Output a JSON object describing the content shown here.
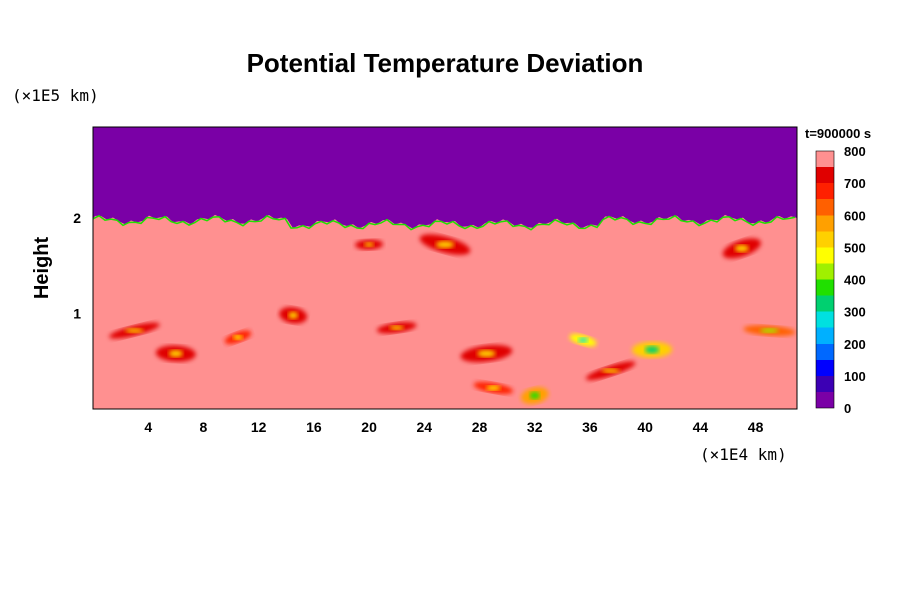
{
  "chart_data": {
    "type": "heatmap",
    "title": "Potential Temperature Deviation",
    "xlabel": "",
    "ylabel": "Height",
    "x_unit": "(×1E4 km)",
    "y_unit": "(×1E5 km)",
    "time_label": "t=900000 s",
    "xlim": [
      0,
      51
    ],
    "ylim": [
      0,
      2.95
    ],
    "x_ticks": [
      4,
      8,
      12,
      16,
      20,
      24,
      28,
      32,
      36,
      40,
      44,
      48
    ],
    "y_ticks": [
      1,
      2
    ],
    "colorbar": {
      "min": 0,
      "max": 800,
      "ticks": [
        0,
        100,
        200,
        300,
        400,
        500,
        600,
        700,
        800
      ],
      "colors": [
        "#7a00a6",
        "#3c00b4",
        "#0000ff",
        "#0068ff",
        "#00b0ff",
        "#00e0e0",
        "#00d070",
        "#20e000",
        "#a0f000",
        "#ffff00",
        "#ffd000",
        "#ffa000",
        "#ff6000",
        "#ff2000",
        "#e00000",
        "#ff9090"
      ]
    },
    "background_value": 780,
    "upper_layer": {
      "value": 0,
      "y_from": 1.98,
      "y_to": 2.95
    },
    "features": [
      {
        "x": 10.5,
        "y": 0.75,
        "value": 650
      },
      {
        "x": 6.0,
        "y": 0.58,
        "value": 720
      },
      {
        "x": 3.0,
        "y": 0.82,
        "value": 730
      },
      {
        "x": 14.5,
        "y": 0.98,
        "value": 700
      },
      {
        "x": 22.0,
        "y": 0.85,
        "value": 720
      },
      {
        "x": 25.5,
        "y": 1.72,
        "value": 730
      },
      {
        "x": 20.0,
        "y": 1.72,
        "value": 740
      },
      {
        "x": 47.0,
        "y": 1.68,
        "value": 740
      },
      {
        "x": 49.0,
        "y": 0.82,
        "value": 640
      },
      {
        "x": 32.0,
        "y": 0.14,
        "value": 560
      },
      {
        "x": 29.0,
        "y": 0.22,
        "value": 660
      },
      {
        "x": 28.5,
        "y": 0.58,
        "value": 700
      },
      {
        "x": 35.5,
        "y": 0.72,
        "value": 450
      },
      {
        "x": 40.5,
        "y": 0.62,
        "value": 500
      },
      {
        "x": 37.5,
        "y": 0.4,
        "value": 720
      }
    ]
  }
}
